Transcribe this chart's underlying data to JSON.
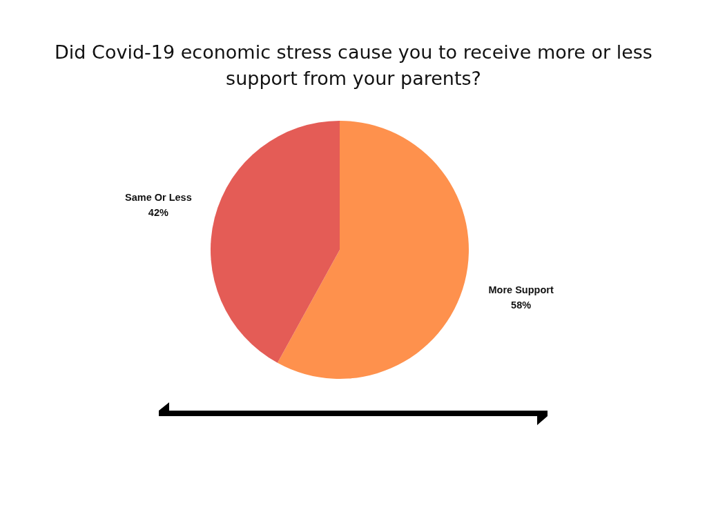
{
  "chart_data": {
    "type": "pie",
    "title": "Did Covid-19 economic stress cause you to receive more or less support from your parents?",
    "categories": [
      "More Support",
      "Same Or Less"
    ],
    "values": [
      58,
      42
    ],
    "value_labels": [
      "58%",
      "42%"
    ],
    "colors": [
      "#fe914d",
      "#e45c56"
    ]
  }
}
